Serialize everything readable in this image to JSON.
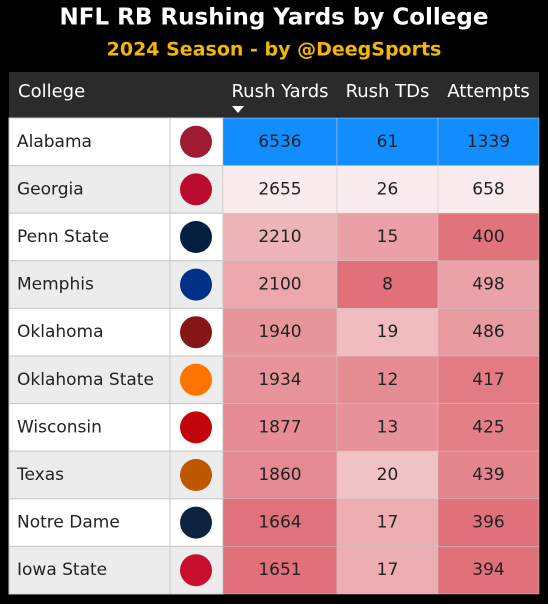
{
  "header": {
    "title": "NFL RB Rushing Yards by College",
    "subtitle": "2024 Season - by @DeegSports"
  },
  "table": {
    "columns": [
      "College",
      "Rush Yards",
      "Rush TDs",
      "Attempts"
    ],
    "sorted_column": 1,
    "selected_row": 0,
    "rows": [
      [
        "Alabama",
        6536,
        61,
        1339
      ],
      [
        "Georgia",
        2655,
        26,
        658
      ],
      [
        "Penn State",
        2210,
        15,
        400
      ],
      [
        "Memphis",
        2100,
        8,
        498
      ],
      [
        "Oklahoma",
        1940,
        19,
        486
      ],
      [
        "Oklahoma State",
        1934,
        12,
        417
      ],
      [
        "Wisconsin",
        1877,
        13,
        425
      ],
      [
        "Texas",
        1860,
        20,
        439
      ],
      [
        "Notre Dame",
        1664,
        17,
        396
      ],
      [
        "Iowa State",
        1651,
        17,
        394
      ]
    ]
  }
}
